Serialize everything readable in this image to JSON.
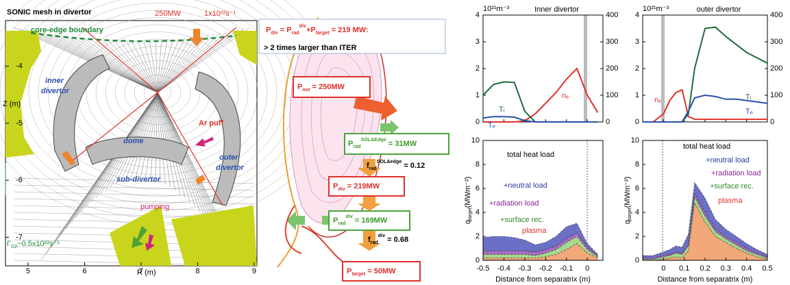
{
  "mesh_panel": {
    "title": "SONIC mesh in divertor",
    "power": "250MW",
    "flux": "1x10²²s⁻¹",
    "boundary": "core-edge boundary",
    "inner": [
      "inner",
      "divertor"
    ],
    "dome": "dome",
    "ar_puff": "Ar puff",
    "outer": [
      "outer",
      "divertor"
    ],
    "sub_divertor": "sub-divertor",
    "pumping": "pumping",
    "gamma": [
      "Γ",
      "D2",
      "~0.5x10²²s⁻¹"
    ],
    "xlabel": "R (m)",
    "ylabel": "Z (m)",
    "xlim": [
      4.6,
      9.05
    ],
    "xticks": [
      5,
      6,
      7,
      8,
      9
    ],
    "ylim": [
      -7.5,
      -3.2
    ],
    "yticks": [
      -4,
      -5,
      -6,
      -7
    ]
  },
  "power_panel": {
    "headline": [
      "P",
      "div",
      " = P",
      "rad",
      "div",
      "+P",
      "target",
      " = 219 MW:"
    ],
    "headline2": "> 2 times larger than ITER",
    "out": [
      "P",
      "out",
      " = 250MW"
    ],
    "sol": [
      "P",
      "rad",
      "SOL&Edge",
      " = 31MW"
    ],
    "f_sol": [
      "f",
      "rad",
      "SOL&edge",
      " = 0.12"
    ],
    "div": [
      "P",
      "div",
      " = 219MW"
    ],
    "rad_div": [
      "P",
      "rad",
      "div",
      " = 169MW"
    ],
    "f_div": [
      "f",
      "rad",
      "div",
      " = 0.68"
    ],
    "target": [
      "P",
      "target",
      " = 50MW"
    ]
  },
  "chart_data": [
    {
      "type": "line",
      "title": "Inner divertor",
      "y_unit": "10²¹m⁻³",
      "x": [
        -0.5,
        -0.45,
        -0.4,
        -0.35,
        -0.3,
        -0.25,
        -0.2,
        -0.15,
        -0.1,
        -0.05,
        0,
        0.05
      ],
      "xlim": [
        -0.5,
        0.075
      ],
      "xticks": [
        -0.5,
        -0.4,
        -0.3,
        -0.2,
        -0.1,
        0
      ],
      "ylim": [
        0,
        4
      ],
      "yticks": [
        0,
        1,
        2,
        3,
        4
      ],
      "y2lim": [
        0,
        400
      ],
      "y2ticks": [
        0,
        100,
        200,
        300,
        400
      ],
      "series": [
        {
          "name": "nₑ",
          "color": "#e0302a",
          "values": [
            0,
            0,
            0,
            0,
            0.05,
            0.3,
            0.7,
            1.1,
            1.6,
            2.0,
            1.0,
            0.35
          ]
        },
        {
          "name": "Tᵢ",
          "color": "#1e6b3a",
          "axis": "y2",
          "values": [
            100,
            140,
            150,
            148,
            40,
            0,
            0,
            0,
            0,
            0,
            0,
            0
          ]
        },
        {
          "name": "Tₑ",
          "color": "#2a4fa8",
          "axis": "y2",
          "values": [
            15,
            20,
            20,
            18,
            5,
            0,
            0,
            0,
            0,
            0,
            0,
            0
          ]
        }
      ]
    },
    {
      "type": "line",
      "title": "outer divertor",
      "y_unit": "10²¹m⁻³",
      "x": [
        -0.1,
        -0.05,
        0,
        0.03,
        0.06,
        0.09,
        0.12,
        0.15,
        0.2,
        0.25,
        0.3,
        0.35,
        0.4,
        0.45,
        0.5
      ],
      "xlim": [
        -0.1,
        0.5
      ],
      "xticks": [
        0,
        0.1,
        0.2,
        0.3,
        0.4,
        0.5
      ],
      "ylim": [
        0,
        4
      ],
      "yticks": [
        0,
        1,
        2,
        3,
        4
      ],
      "y2lim": [
        0,
        400
      ],
      "y2ticks": [
        0,
        100,
        200,
        300,
        400
      ],
      "series": [
        {
          "name": "nₑ",
          "color": "#e0302a",
          "values": [
            0,
            0,
            0.3,
            0.8,
            1.1,
            1.2,
            0.2,
            0.1,
            0.1,
            0.1,
            0.1,
            0.1,
            0.1,
            0.1,
            0.1
          ]
        },
        {
          "name": "Tᵢ",
          "color": "#1e6b3a",
          "axis": "y2",
          "values": [
            0,
            0,
            0,
            0,
            0,
            0,
            30,
            200,
            350,
            355,
            320,
            290,
            260,
            240,
            220
          ]
        },
        {
          "name": "Tₑ",
          "color": "#2a4fa8",
          "axis": "y2",
          "values": [
            0,
            0,
            0,
            0,
            0,
            0,
            40,
            90,
            100,
            95,
            85,
            85,
            80,
            75,
            70
          ]
        }
      ]
    },
    {
      "type": "stacked_area",
      "annotation": "total heat load",
      "xlabel": "Distance from separatrix (m)",
      "ylabel": [
        "q",
        "target",
        "(MWm⁻²)"
      ],
      "x": [
        -0.5,
        -0.45,
        -0.4,
        -0.35,
        -0.3,
        -0.25,
        -0.2,
        -0.15,
        -0.1,
        -0.05,
        0,
        0.05
      ],
      "xlim": [
        -0.5,
        0.075
      ],
      "xticks": [
        -0.5,
        -0.4,
        -0.3,
        -0.2,
        -0.1,
        0
      ],
      "ylim": [
        0,
        10
      ],
      "yticks": [
        0,
        2,
        4,
        6,
        8,
        10
      ],
      "series": [
        {
          "name": "plasma",
          "color": "#f2a878",
          "values": [
            0.2,
            0.2,
            0.2,
            0.2,
            0.2,
            0.2,
            0.3,
            0.5,
            0.9,
            1.4,
            0.6,
            0.2
          ]
        },
        {
          "name": "+surface rec.",
          "color": "#a6d98c",
          "values": [
            0.3,
            0.3,
            0.3,
            0.3,
            0.3,
            0.2,
            0.3,
            0.4,
            0.6,
            0.6,
            0.3,
            0.1
          ]
        },
        {
          "name": "+radiation load",
          "color": "#a86cc4",
          "values": [
            0.3,
            0.3,
            0.3,
            0.3,
            0.3,
            0.3,
            0.3,
            0.3,
            0.3,
            0.3,
            0.2,
            0.1
          ]
        },
        {
          "name": "+neutral load",
          "color": "#6b70c6",
          "values": [
            1.1,
            1.2,
            1.2,
            1.1,
            0.9,
            0.6,
            0.6,
            0.8,
            1.0,
            0.8,
            0.3,
            0.1
          ]
        }
      ]
    },
    {
      "type": "stacked_area",
      "annotation": "total heat load",
      "xlabel": "Distance from separatrix (m)",
      "ylabel": [
        "q",
        "target",
        "(MWm⁻²)"
      ],
      "x": [
        -0.1,
        -0.05,
        0,
        0.03,
        0.06,
        0.09,
        0.12,
        0.15,
        0.2,
        0.25,
        0.3,
        0.35,
        0.4,
        0.45,
        0.5
      ],
      "xlim": [
        -0.1,
        0.5
      ],
      "xticks": [
        0,
        0.1,
        0.2,
        0.3,
        0.4,
        0.5
      ],
      "ylim": [
        0,
        10
      ],
      "yticks": [
        0,
        2,
        4,
        6,
        8,
        10
      ],
      "series": [
        {
          "name": "plasma",
          "color": "#f2a878",
          "values": [
            0,
            0,
            0.1,
            0.2,
            0.3,
            0.2,
            0.8,
            4.8,
            3.2,
            2.0,
            1.5,
            1.0,
            0.6,
            0.3,
            0.1
          ]
        },
        {
          "name": "+surface rec.",
          "color": "#a6d98c",
          "values": [
            0.1,
            0.1,
            0.2,
            0.2,
            0.3,
            0.3,
            0.4,
            0.5,
            0.5,
            0.4,
            0.3,
            0.3,
            0.2,
            0.2,
            0.1
          ]
        },
        {
          "name": "+radiation load",
          "color": "#a86cc4",
          "values": [
            0.1,
            0.1,
            0.1,
            0.1,
            0.1,
            0.1,
            0.2,
            0.3,
            0.3,
            0.2,
            0.2,
            0.2,
            0.2,
            0.1,
            0.1
          ]
        },
        {
          "name": "+neutral load",
          "color": "#6b70c6",
          "values": [
            0.2,
            0.2,
            0.3,
            0.4,
            0.5,
            0.5,
            0.8,
            0.9,
            1.2,
            0.8,
            0.6,
            0.5,
            0.4,
            0.3,
            0.2
          ]
        }
      ]
    }
  ]
}
